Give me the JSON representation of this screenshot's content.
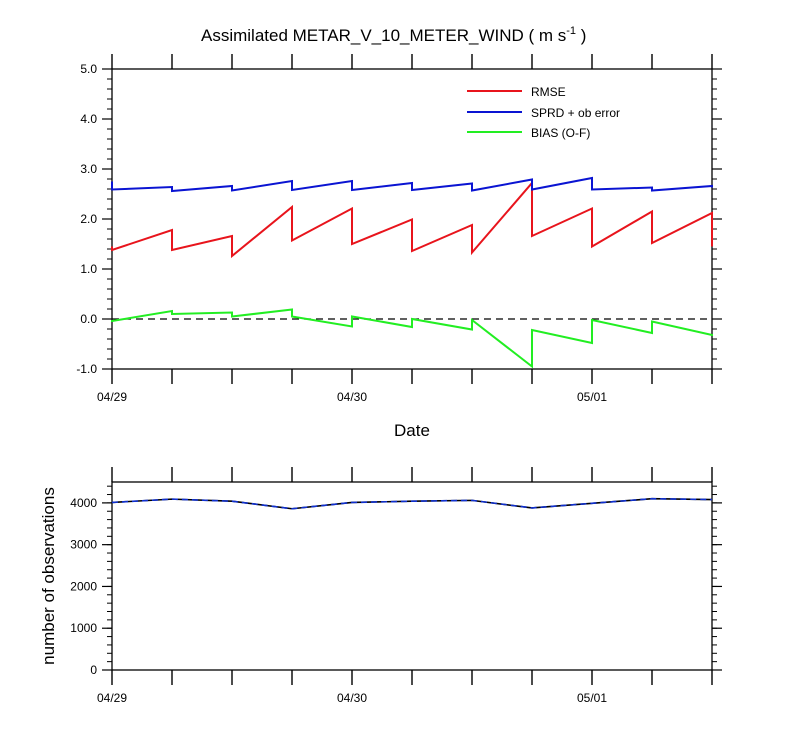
{
  "chart_data": [
    {
      "type": "line",
      "title": "Assimilated METAR_V_10_METER_WIND ( m s",
      "title_exponent": "-1",
      "title_close": " )",
      "xlabel": "Date",
      "ylabel": "",
      "ylim": [
        -1.0,
        5.0
      ],
      "yticks": [
        "-1.0",
        "0.0",
        "1.0",
        "2.0",
        "3.0",
        "4.0",
        "5.0"
      ],
      "xtick_labels": [
        "04/29",
        "04/30",
        "05/01"
      ],
      "xlim": [
        0,
        60
      ],
      "legend_position": "top-right",
      "zero_line": "dashed",
      "series": [
        {
          "name": "RMSE",
          "color": "#e8141c",
          "x": [
            0,
            0,
            6,
            6,
            12,
            12,
            18,
            18,
            24,
            24,
            30,
            30,
            36,
            36,
            42,
            42,
            48,
            48,
            54,
            54,
            60,
            60
          ],
          "y": [
            1.45,
            1.38,
            1.78,
            1.38,
            1.66,
            1.26,
            2.24,
            1.57,
            2.21,
            1.5,
            1.99,
            1.36,
            1.88,
            1.33,
            2.72,
            1.66,
            2.21,
            1.45,
            2.15,
            1.52,
            2.12,
            1.45
          ]
        },
        {
          "name": "SPRD + ob error",
          "color": "#0a14d2",
          "x": [
            0,
            0,
            6,
            6,
            12,
            12,
            18,
            18,
            24,
            24,
            30,
            30,
            36,
            36,
            42,
            42,
            48,
            48,
            54,
            54,
            60,
            60
          ],
          "y": [
            2.75,
            2.59,
            2.64,
            2.56,
            2.66,
            2.57,
            2.76,
            2.58,
            2.76,
            2.58,
            2.72,
            2.58,
            2.71,
            2.57,
            2.79,
            2.59,
            2.82,
            2.59,
            2.63,
            2.57,
            2.66,
            2.63
          ]
        },
        {
          "name": "BIAS (O-F)",
          "color": "#22ee22",
          "x": [
            0,
            0,
            6,
            6,
            12,
            12,
            18,
            18,
            24,
            24,
            30,
            30,
            36,
            36,
            42,
            42,
            48,
            48,
            54,
            54,
            60,
            60
          ],
          "y": [
            -0.06,
            -0.04,
            0.16,
            0.1,
            0.13,
            0.05,
            0.19,
            0.05,
            -0.15,
            0.05,
            -0.16,
            0.0,
            -0.21,
            -0.02,
            -0.95,
            -0.22,
            -0.48,
            -0.02,
            -0.28,
            -0.05,
            -0.32,
            -0.3
          ]
        }
      ]
    },
    {
      "type": "line",
      "ylabel": "number of observations",
      "ylim": [
        0,
        4500
      ],
      "yticks": [
        "0",
        "1000",
        "2000",
        "3000",
        "4000"
      ],
      "xtick_labels": [
        "04/29",
        "04/30",
        "05/01"
      ],
      "xlim": [
        0,
        60
      ],
      "series": [
        {
          "name": "",
          "color": "#000000",
          "style": "solid",
          "x": [
            0,
            6,
            12,
            18,
            24,
            30,
            36,
            42,
            48,
            54,
            60
          ],
          "y": [
            4010,
            4090,
            4040,
            3860,
            4010,
            4040,
            4060,
            3880,
            3990,
            4100,
            4080
          ]
        },
        {
          "name": "",
          "color": "#1030d0",
          "style": "dashed",
          "x": [
            0,
            6,
            12,
            18,
            24,
            30,
            36,
            42,
            48,
            54,
            60
          ],
          "y": [
            4010,
            4090,
            4040,
            3860,
            4010,
            4040,
            4060,
            3880,
            3990,
            4100,
            4080
          ]
        }
      ]
    }
  ]
}
